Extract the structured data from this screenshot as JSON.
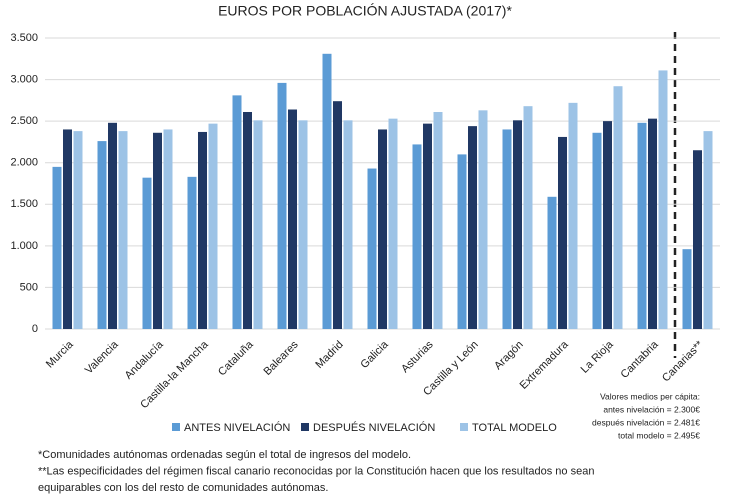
{
  "chart_data": {
    "type": "bar",
    "title": "EUROS POR POBLACIÓN AJUSTADA (2017)*",
    "categories": [
      "Murcia",
      "Valencia",
      "Andalucía",
      "Castilla-la Mancha",
      "Cataluña",
      "Baleares",
      "Madrid",
      "Galicia",
      "Asturias",
      "Castilla y León",
      "Aragón",
      "Extremadura",
      "La Rioja",
      "Cantabria",
      "Canarias**"
    ],
    "series": [
      {
        "name": "ANTES NIVELACIÓN",
        "color": "#5b9bd5",
        "values": [
          1950,
          2260,
          1820,
          1830,
          2810,
          2960,
          3310,
          1930,
          2220,
          2100,
          2400,
          1590,
          2360,
          2480,
          960
        ]
      },
      {
        "name": "DESPUÉS NIVELACIÓN",
        "color": "#203864",
        "values": [
          2400,
          2480,
          2360,
          2370,
          2610,
          2640,
          2740,
          2400,
          2470,
          2440,
          2510,
          2310,
          2500,
          2530,
          2150
        ]
      },
      {
        "name": "TOTAL MODELO",
        "color": "#9dc3e6",
        "values": [
          2380,
          2380,
          2400,
          2470,
          2510,
          2510,
          2510,
          2530,
          2610,
          2630,
          2680,
          2720,
          2920,
          3110,
          2380
        ]
      }
    ],
    "ylim": [
      0,
      3500
    ],
    "yticks": [
      0,
      500,
      {
        "value": 1000,
        "label": "1.000"
      },
      {
        "value": 1500,
        "label": "1.500"
      },
      {
        "value": 2000,
        "label": "2.000"
      },
      {
        "value": 2500,
        "label": "2.500"
      },
      {
        "value": 3000,
        "label": "3.000"
      },
      {
        "value": 3500,
        "label": "3.500"
      }
    ],
    "grid": true,
    "legend": "bottom",
    "footnotes": [
      "*Comunidades autónomas ordenadas según el total de ingresos del modelo.",
      "**Las especificidades del régimen fiscal canario reconocidas por la Constitución hacen que los resultados no sean",
      "equiparables con los del resto de comunidades autónomas."
    ],
    "side_note": [
      "Valores medios per cápita:",
      "antes nivelación = 2.300€",
      "después nivelación = 2.481€",
      "total  modelo = 2.495€"
    ]
  }
}
